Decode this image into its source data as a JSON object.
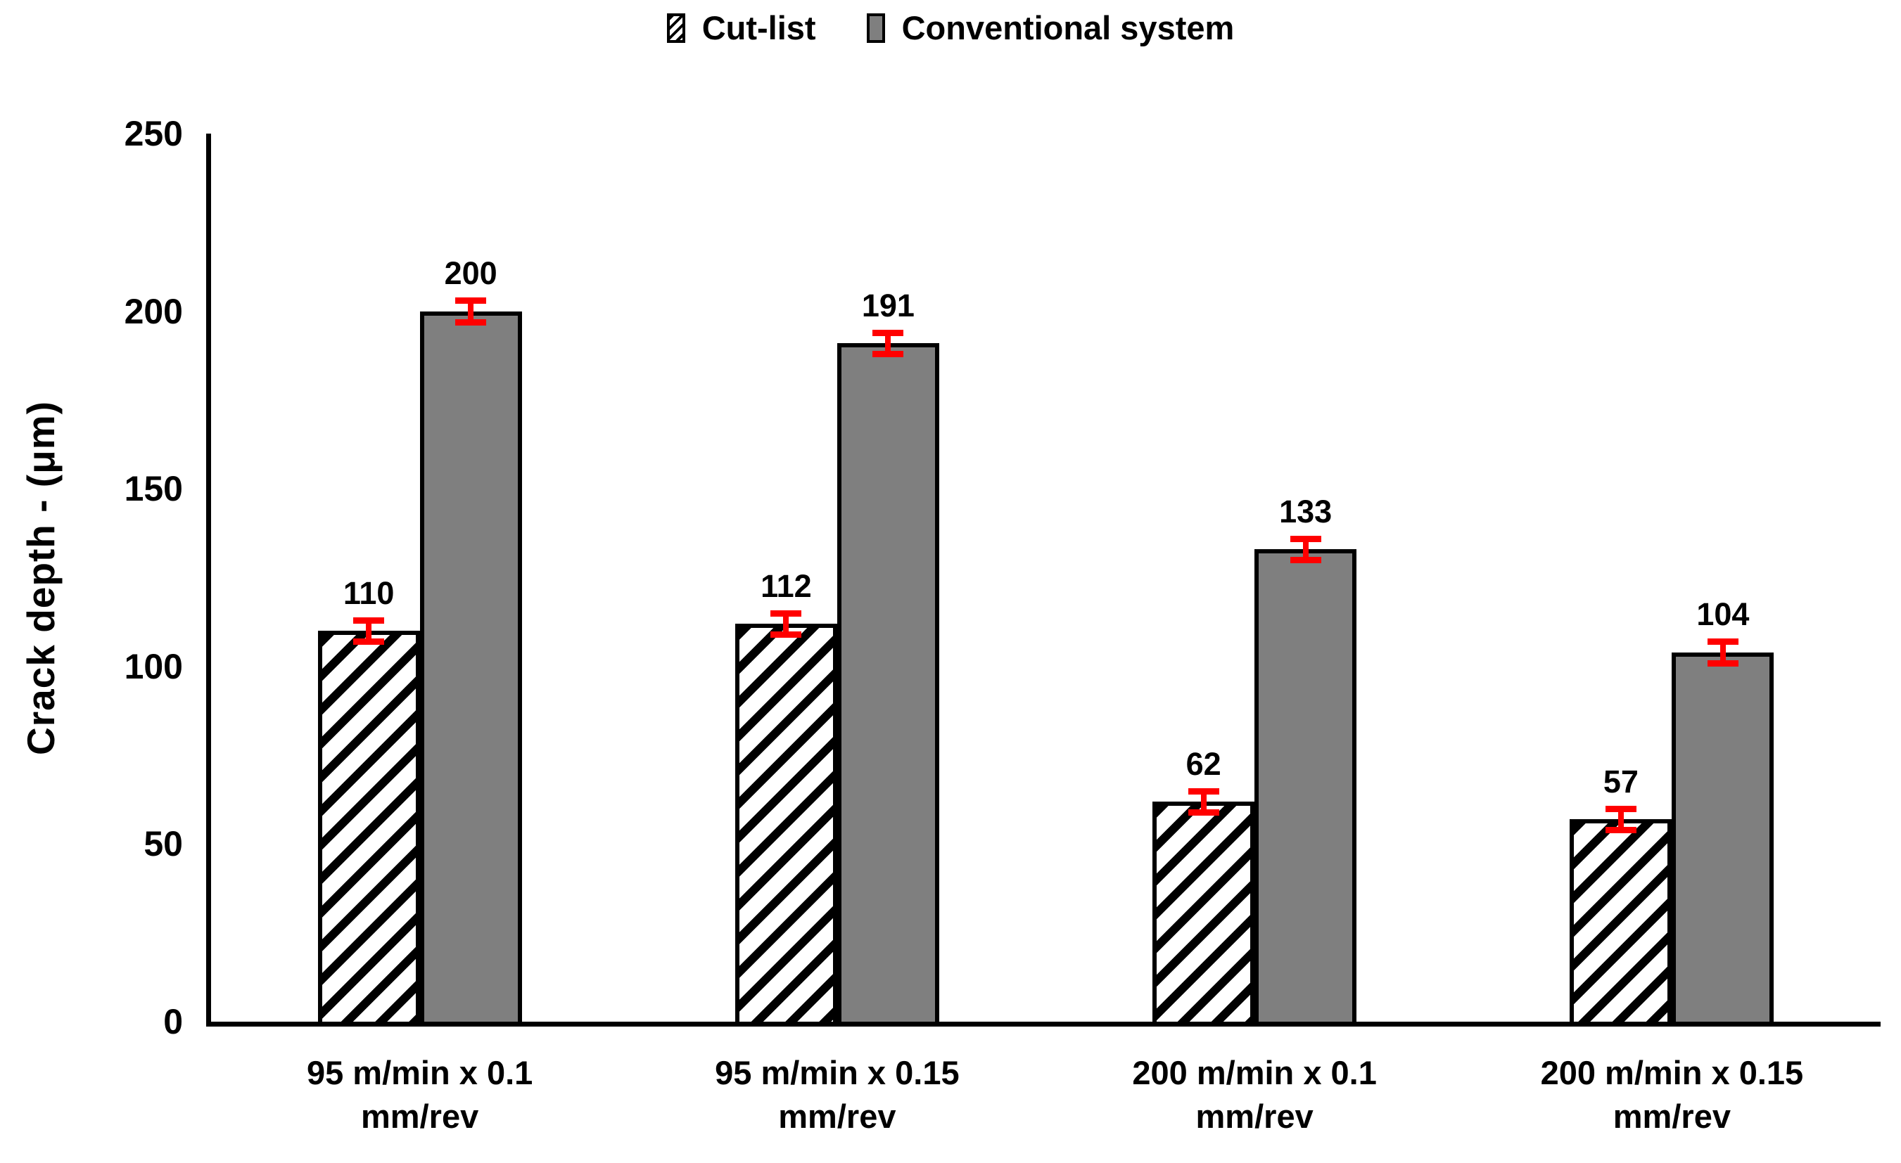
{
  "chart_data": {
    "type": "bar",
    "title": "",
    "categories": [
      "95 m/min x 0.1\nmm/rev",
      "95 m/min x 0.15\nmm/rev",
      "200 m/min x 0.1\nmm/rev",
      "200 m/min x 0.15\nmm/rev"
    ],
    "series": [
      {
        "name": "Cut-list",
        "values": [
          110,
          112,
          62,
          57
        ],
        "errors": [
          3,
          3,
          3,
          3
        ],
        "fill_style": "diagonal-hatch",
        "hatch_color": "#000000",
        "hatch_background": "#ffffff"
      },
      {
        "name": "Conventional system",
        "values": [
          200,
          191,
          133,
          104
        ],
        "errors": [
          3,
          3,
          3,
          3
        ],
        "fill_style": "solid",
        "fill_color": "#7f7f7f"
      }
    ],
    "data_labels": true,
    "xlabel": "",
    "ylabel": "Crack depth - (μm)",
    "ylim": [
      0,
      250
    ],
    "yticks": [
      "0",
      "50",
      "100",
      "150",
      "200",
      "250"
    ],
    "grid": false,
    "legend_position": "top-center",
    "axis_color": "#000000",
    "bar_border_color": "#000000",
    "error_bar_color": "#ff0000",
    "background_color": "#ffffff"
  }
}
